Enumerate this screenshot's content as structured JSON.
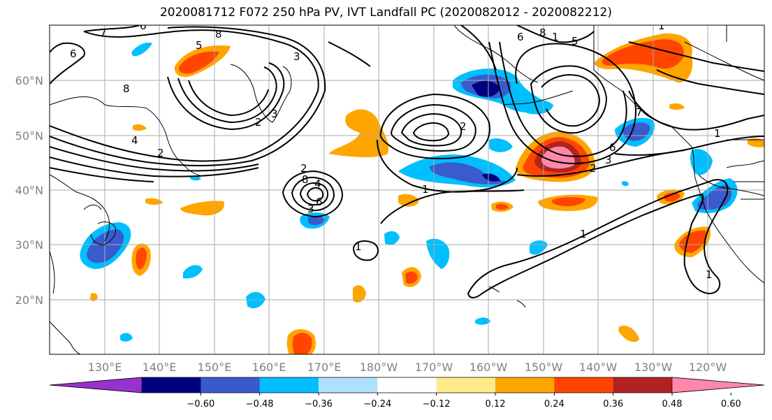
{
  "title": "2020081712 F072 250 hPa PV, IVT Landfall PC (2020082012 - 2020082212)",
  "lat_labels": [
    "60°N",
    "50°N",
    "40°N",
    "30°N",
    "20°N"
  ],
  "lon_labels": [
    "130°E",
    "140°E",
    "150°E",
    "160°E",
    "170°E",
    "180°W",
    "170°W",
    "160°W",
    "150°W",
    "140°W",
    "130°W",
    "120°W"
  ],
  "colorbar": {
    "tick_labels": [
      "−0.60",
      "−0.48",
      "−0.36",
      "−0.24",
      "−0.12",
      "0.12",
      "0.24",
      "0.36",
      "0.48",
      "0.60"
    ],
    "colors": [
      "#9932cc",
      "#000080",
      "#3a5bcd",
      "#00bfff",
      "#b0e0ff",
      "#ffffff",
      "#ffeb8a",
      "#ffa500",
      "#ff4500",
      "#b22222",
      "#ff88aa"
    ]
  },
  "contour_labels": [
    "7",
    "6",
    "8",
    "6",
    "5",
    "3",
    "8",
    "2",
    "4",
    "2",
    "3",
    "2",
    "6",
    "8",
    "1",
    "2",
    "4",
    "3",
    "6",
    "1",
    "1",
    "3",
    "2",
    "6",
    "5",
    "1",
    "7",
    "8",
    "1",
    "1",
    "1"
  ]
}
